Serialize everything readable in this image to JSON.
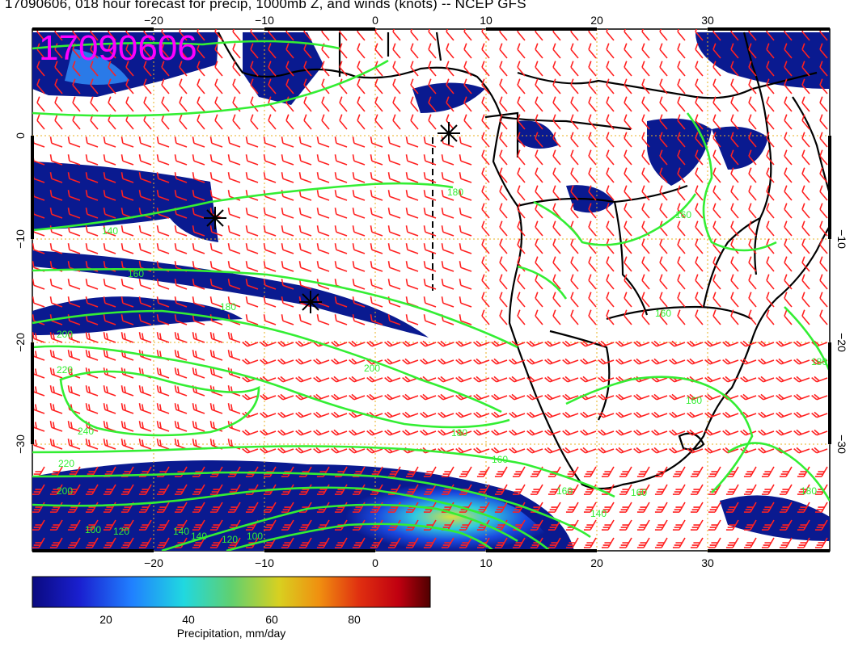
{
  "title": "17090606, 018 hour forecast for precip, 1000mb Z, and winds (knots) -- NCEP GFS",
  "stamp": "17090606",
  "axes": {
    "lon_ticks": [
      "−20",
      "−10",
      "0",
      "10",
      "20",
      "30"
    ],
    "lat_ticks": [
      "0",
      "−10",
      "−20",
      "−30"
    ]
  },
  "contour_labels": [
    "140",
    "160",
    "180",
    "180",
    "200",
    "200",
    "220",
    "240",
    "220",
    "200",
    "180",
    "160",
    "140",
    "120",
    "100",
    "160",
    "160",
    "180",
    "180",
    "160",
    "160",
    "140",
    "100",
    "120",
    "140",
    "160"
  ],
  "colorbar": {
    "title": "Precipitation, mm/day",
    "ticks": [
      "20",
      "40",
      "60",
      "80"
    ]
  },
  "colors": {
    "contour": "#33ee33",
    "barb": "#ff2020",
    "stamp": "#ff00ff",
    "grid": "#e8b020"
  },
  "markers": [
    "storm-marker",
    "storm-marker",
    "storm-marker",
    "storm-marker"
  ]
}
